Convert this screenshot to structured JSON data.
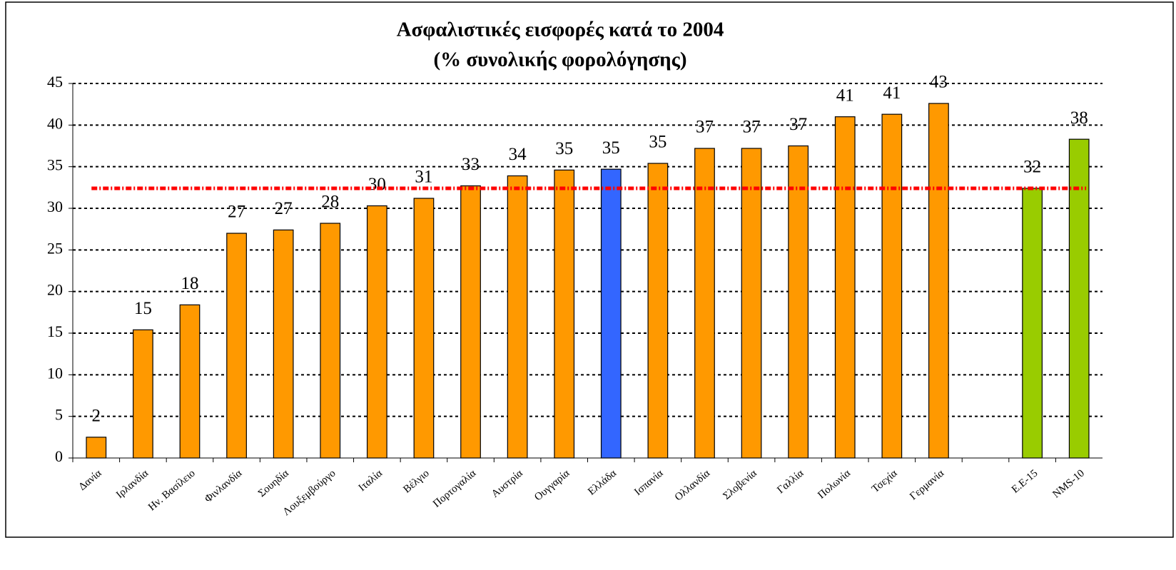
{
  "chart_data": {
    "type": "bar",
    "title": "Ασφαλιστικές εισφορές κατά το 2004",
    "subtitle": "(% συνολικής φορολόγησης)",
    "categories": [
      "Δανία",
      "Ιρλανδία",
      "Ην. Βασίλειο",
      "Φινλανδία",
      "Σουηδία",
      "Λουξεμβούργο",
      "Ιταλία",
      "Βέλγιο",
      "Πορτογαλία",
      "Αυστρία",
      "Ουγγαρία",
      "Ελλάδα",
      "Ισπανία",
      "Ολλανδία",
      "Σλοβενία",
      "Γαλλία",
      "Πολωνία",
      "Τσεχία",
      "Γερμανία",
      null,
      "Ε.Ε-15",
      "NMS-10"
    ],
    "values": [
      2.5,
      15.4,
      18.4,
      27.0,
      27.4,
      28.2,
      30.3,
      31.2,
      32.7,
      33.9,
      34.6,
      34.7,
      35.4,
      37.2,
      37.2,
      37.5,
      41.0,
      41.3,
      42.6,
      null,
      32.4,
      38.3
    ],
    "value_labels": [
      "2",
      "15",
      "18",
      "27",
      "27",
      "28",
      "30",
      "31",
      "33",
      "34",
      "35",
      "35",
      "35",
      "37",
      "37",
      "37",
      "41",
      "41",
      "43",
      null,
      "32",
      "38"
    ],
    "colors": [
      "#ff9900",
      "#ff9900",
      "#ff9900",
      "#ff9900",
      "#ff9900",
      "#ff9900",
      "#ff9900",
      "#ff9900",
      "#ff9900",
      "#ff9900",
      "#ff9900",
      "#3366ff",
      "#ff9900",
      "#ff9900",
      "#ff9900",
      "#ff9900",
      "#ff9900",
      "#ff9900",
      "#ff9900",
      null,
      "#99cc00",
      "#99cc00"
    ],
    "reference_line": {
      "value": 32.4,
      "color": "#ff0000"
    },
    "ylim": [
      0,
      45
    ],
    "yticks": [
      0,
      5,
      10,
      15,
      20,
      25,
      30,
      35,
      40,
      45
    ],
    "grid": true
  }
}
